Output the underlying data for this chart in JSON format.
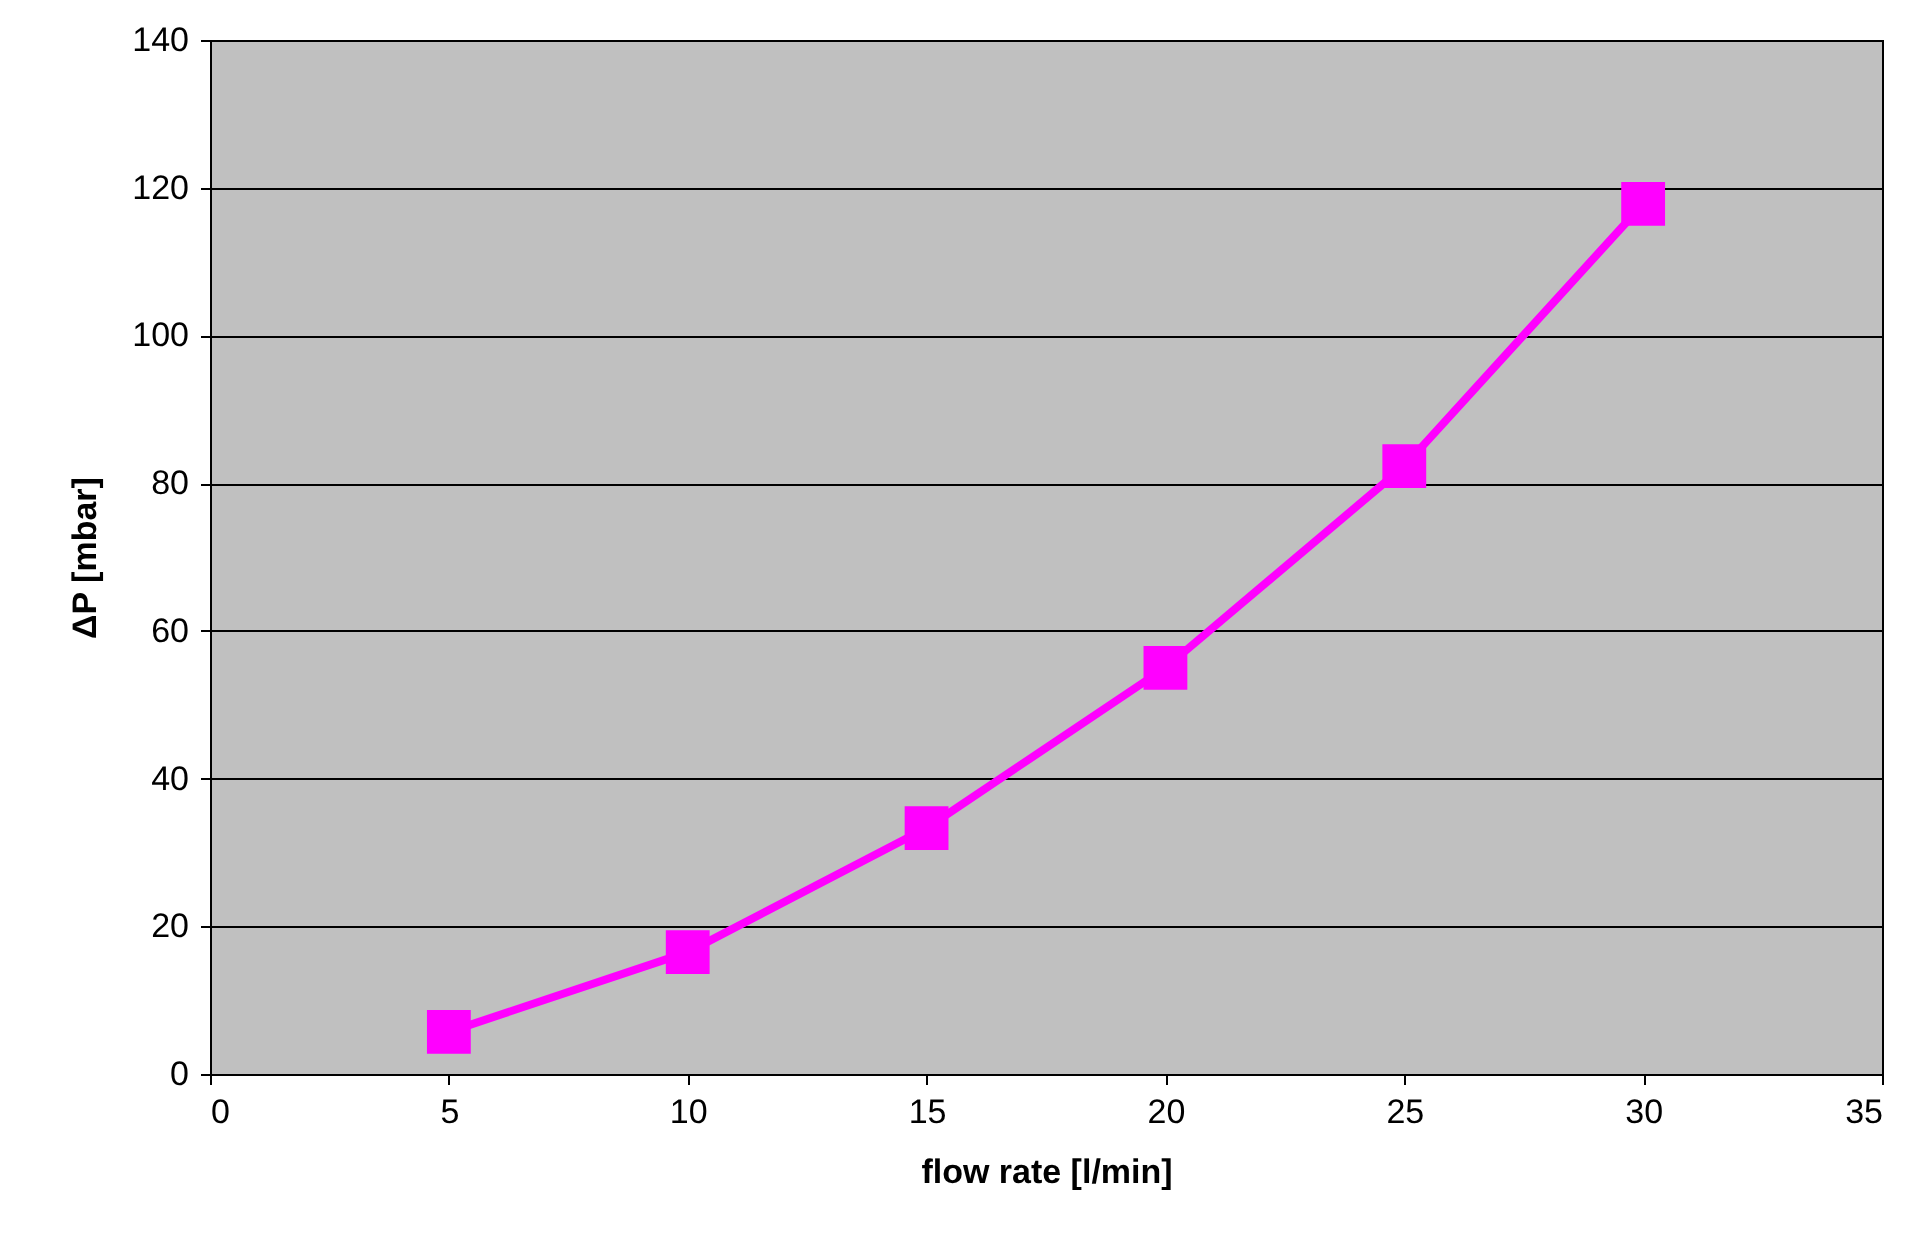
{
  "chart_data": {
    "type": "line",
    "xlabel": "flow rate [l/min]",
    "ylabel": "ΔP [mbar]",
    "x": [
      5,
      10,
      15,
      20,
      25,
      30
    ],
    "series": [
      {
        "color": "#ff00ff",
        "values": [
          5.7,
          16.5,
          33.3,
          55.0,
          82.3,
          117.8
        ]
      }
    ],
    "xlim": [
      0,
      35
    ],
    "xticks": [
      0,
      5,
      10,
      15,
      20,
      25,
      30,
      35
    ],
    "ylim": [
      0,
      140
    ],
    "yticks": [
      0,
      20,
      40,
      60,
      80,
      100,
      120,
      140
    ],
    "grid": "y",
    "marker": "square",
    "line_style": "solid"
  }
}
